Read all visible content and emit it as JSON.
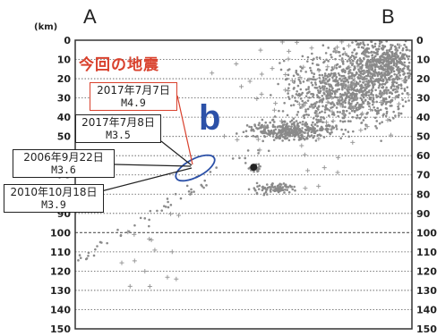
{
  "header": {
    "left_label": "A",
    "right_label": "B",
    "unit": "(km)"
  },
  "annotations": {
    "current_quake": "今回の地震",
    "region_label": "b"
  },
  "event_labels": [
    {
      "date": "2017年7月7日",
      "magnitude": "M4.9"
    },
    {
      "date": "2017年7月8日",
      "magnitude": "M3.5"
    },
    {
      "date": "2006年9月22日",
      "magnitude": "M3.6"
    },
    {
      "date": "2010年10月18日",
      "magnitude": "M3.9"
    }
  ],
  "colors": {
    "accent": "#d9412d",
    "region": "#2c51a8",
    "points": "#888888"
  },
  "chart_data": {
    "type": "scatter",
    "ylabel": "(km)",
    "ylim": [
      0,
      150
    ],
    "yticks": [
      0,
      10,
      20,
      30,
      40,
      50,
      60,
      70,
      80,
      90,
      100,
      110,
      120,
      130,
      140,
      150
    ],
    "grid": "horizontal dashed",
    "marked_events": [
      {
        "x": 0.53,
        "y": 66
      },
      {
        "x": 0.54,
        "y": 67
      }
    ]
  }
}
